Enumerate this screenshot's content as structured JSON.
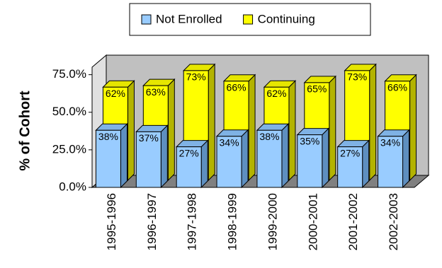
{
  "chart_data": {
    "type": "bar3d",
    "y_label": "% of Cohort",
    "categories": [
      "1995-1996",
      "1996-1997",
      "1997-1998",
      "1998-1999",
      "1999-2000",
      "2000-2001",
      "2001-2002",
      "2002-2003"
    ],
    "series": [
      {
        "name": "Not Enrolled",
        "color": "#99ccff",
        "values": [
          38,
          37,
          27,
          34,
          38,
          35,
          27,
          34
        ],
        "value_labels": [
          "38%",
          "37%",
          "27%",
          "34%",
          "38%",
          "35%",
          "27%",
          "34%"
        ]
      },
      {
        "name": "Continuing",
        "color": "#ffff00",
        "values": [
          62,
          63,
          73,
          66,
          62,
          65,
          73,
          66
        ],
        "value_labels": [
          "62%",
          "63%",
          "73%",
          "66%",
          "62%",
          "65%",
          "73%",
          "66%"
        ]
      }
    ],
    "ylim": [
      0,
      80
    ],
    "yticks": [
      {
        "value": 0,
        "label": "0.0%"
      },
      {
        "value": 25,
        "label": "25.0%"
      },
      {
        "value": 50,
        "label": "50.0%"
      },
      {
        "value": 75,
        "label": "75.0%"
      }
    ],
    "legend": "top"
  }
}
